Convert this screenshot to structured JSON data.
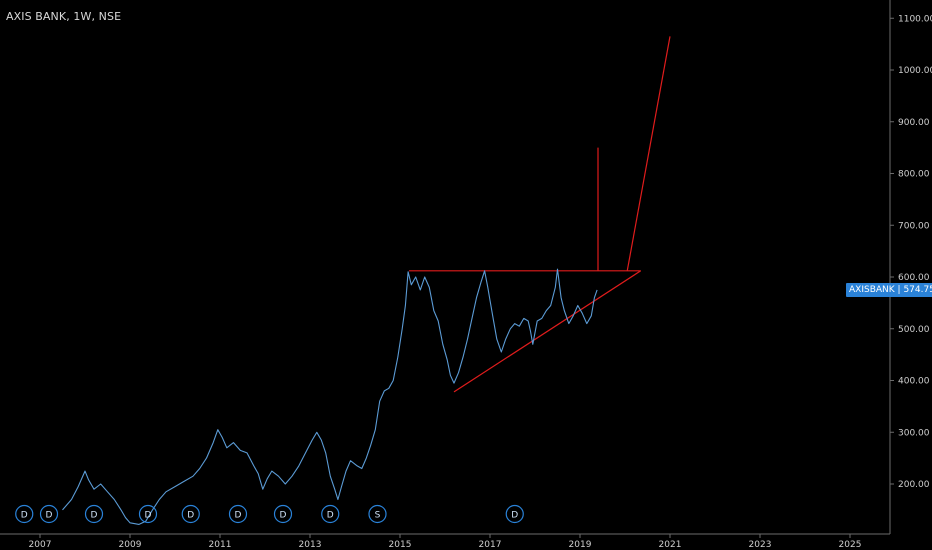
{
  "header": {
    "title": "AXIS BANK, 1W, NSE"
  },
  "symbol_label": {
    "ticker": "AXISBANK",
    "price": "574.75"
  },
  "colors": {
    "background": "#000000",
    "price_line": "#5b9bd5",
    "drawing": "#e01c1c",
    "label_bg": "#2a82d8",
    "marker": "#2a82d8"
  },
  "chart_data": {
    "type": "line",
    "title": "",
    "x_ticks": [
      "2007",
      "2009",
      "2011",
      "2013",
      "2015",
      "2017",
      "2019",
      "2021",
      "2023",
      "2025"
    ],
    "y_ticks": [
      "200.00",
      "300.00",
      "400.00",
      "500.00",
      "600.00",
      "700.00",
      "800.00",
      "900.00",
      "1000.00",
      "1100.00"
    ],
    "xlim": [
      2006.5,
      2026
    ],
    "ylim": [
      120,
      1120
    ],
    "series": [
      {
        "points": [
          [
            2007.5,
            150
          ],
          [
            2007.7,
            170
          ],
          [
            2007.85,
            195
          ],
          [
            2008.0,
            225
          ],
          [
            2008.08,
            208
          ],
          [
            2008.2,
            190
          ],
          [
            2008.35,
            200
          ],
          [
            2008.5,
            185
          ],
          [
            2008.65,
            170
          ],
          [
            2008.8,
            150
          ],
          [
            2008.9,
            135
          ],
          [
            2009.0,
            125
          ],
          [
            2009.2,
            122
          ],
          [
            2009.35,
            128
          ],
          [
            2009.5,
            150
          ],
          [
            2009.65,
            170
          ],
          [
            2009.8,
            185
          ],
          [
            2010.0,
            195
          ],
          [
            2010.2,
            205
          ],
          [
            2010.4,
            215
          ],
          [
            2010.55,
            230
          ],
          [
            2010.7,
            250
          ],
          [
            2010.85,
            280
          ],
          [
            2010.95,
            305
          ],
          [
            2011.05,
            290
          ],
          [
            2011.15,
            270
          ],
          [
            2011.3,
            280
          ],
          [
            2011.45,
            265
          ],
          [
            2011.6,
            260
          ],
          [
            2011.75,
            235
          ],
          [
            2011.85,
            220
          ],
          [
            2011.95,
            190
          ],
          [
            2012.05,
            210
          ],
          [
            2012.15,
            225
          ],
          [
            2012.3,
            215
          ],
          [
            2012.45,
            200
          ],
          [
            2012.6,
            215
          ],
          [
            2012.75,
            235
          ],
          [
            2012.9,
            260
          ],
          [
            2013.05,
            285
          ],
          [
            2013.15,
            300
          ],
          [
            2013.25,
            285
          ],
          [
            2013.35,
            260
          ],
          [
            2013.45,
            215
          ],
          [
            2013.55,
            190
          ],
          [
            2013.62,
            170
          ],
          [
            2013.7,
            195
          ],
          [
            2013.8,
            225
          ],
          [
            2013.9,
            245
          ],
          [
            2014.05,
            235
          ],
          [
            2014.15,
            230
          ],
          [
            2014.25,
            250
          ],
          [
            2014.35,
            275
          ],
          [
            2014.45,
            305
          ],
          [
            2014.55,
            360
          ],
          [
            2014.65,
            380
          ],
          [
            2014.75,
            385
          ],
          [
            2014.85,
            400
          ],
          [
            2014.95,
            445
          ],
          [
            2015.05,
            500
          ],
          [
            2015.12,
            545
          ],
          [
            2015.18,
            610
          ],
          [
            2015.25,
            585
          ],
          [
            2015.35,
            600
          ],
          [
            2015.45,
            575
          ],
          [
            2015.55,
            600
          ],
          [
            2015.65,
            580
          ],
          [
            2015.75,
            535
          ],
          [
            2015.85,
            515
          ],
          [
            2015.95,
            470
          ],
          [
            2016.05,
            440
          ],
          [
            2016.12,
            410
          ],
          [
            2016.2,
            395
          ],
          [
            2016.3,
            415
          ],
          [
            2016.4,
            445
          ],
          [
            2016.5,
            480
          ],
          [
            2016.6,
            520
          ],
          [
            2016.7,
            560
          ],
          [
            2016.8,
            590
          ],
          [
            2016.88,
            612
          ],
          [
            2016.95,
            580
          ],
          [
            2017.0,
            555
          ],
          [
            2017.08,
            515
          ],
          [
            2017.15,
            480
          ],
          [
            2017.25,
            455
          ],
          [
            2017.35,
            480
          ],
          [
            2017.45,
            500
          ],
          [
            2017.55,
            510
          ],
          [
            2017.65,
            505
          ],
          [
            2017.75,
            520
          ],
          [
            2017.85,
            515
          ],
          [
            2017.9,
            495
          ],
          [
            2017.95,
            470
          ],
          [
            2018.05,
            515
          ],
          [
            2018.15,
            520
          ],
          [
            2018.25,
            535
          ],
          [
            2018.35,
            545
          ],
          [
            2018.45,
            580
          ],
          [
            2018.5,
            615
          ],
          [
            2018.58,
            560
          ],
          [
            2018.65,
            535
          ],
          [
            2018.75,
            510
          ],
          [
            2018.85,
            525
          ],
          [
            2018.95,
            545
          ],
          [
            2019.05,
            530
          ],
          [
            2019.15,
            510
          ],
          [
            2019.25,
            525
          ],
          [
            2019.32,
            560
          ],
          [
            2019.38,
            575
          ]
        ]
      }
    ],
    "drawings": [
      {
        "from": [
          2015.2,
          612
        ],
        "to": [
          2020.35,
          612
        ]
      },
      {
        "from": [
          2016.2,
          378
        ],
        "to": [
          2020.35,
          612
        ]
      },
      {
        "from": [
          2019.4,
          850
        ],
        "to": [
          2019.4,
          612
        ]
      },
      {
        "from": [
          2020.05,
          612
        ],
        "to": [
          2021.0,
          1065
        ]
      }
    ],
    "markers": [
      {
        "x": 2006.65,
        "label": "D"
      },
      {
        "x": 2007.2,
        "label": "D"
      },
      {
        "x": 2008.2,
        "label": "D"
      },
      {
        "x": 2009.4,
        "label": "D"
      },
      {
        "x": 2010.35,
        "label": "D"
      },
      {
        "x": 2011.4,
        "label": "D"
      },
      {
        "x": 2012.4,
        "label": "D"
      },
      {
        "x": 2013.45,
        "label": "D"
      },
      {
        "x": 2014.5,
        "label": "S"
      },
      {
        "x": 2017.55,
        "label": "D"
      }
    ],
    "current_price": 574.75
  }
}
